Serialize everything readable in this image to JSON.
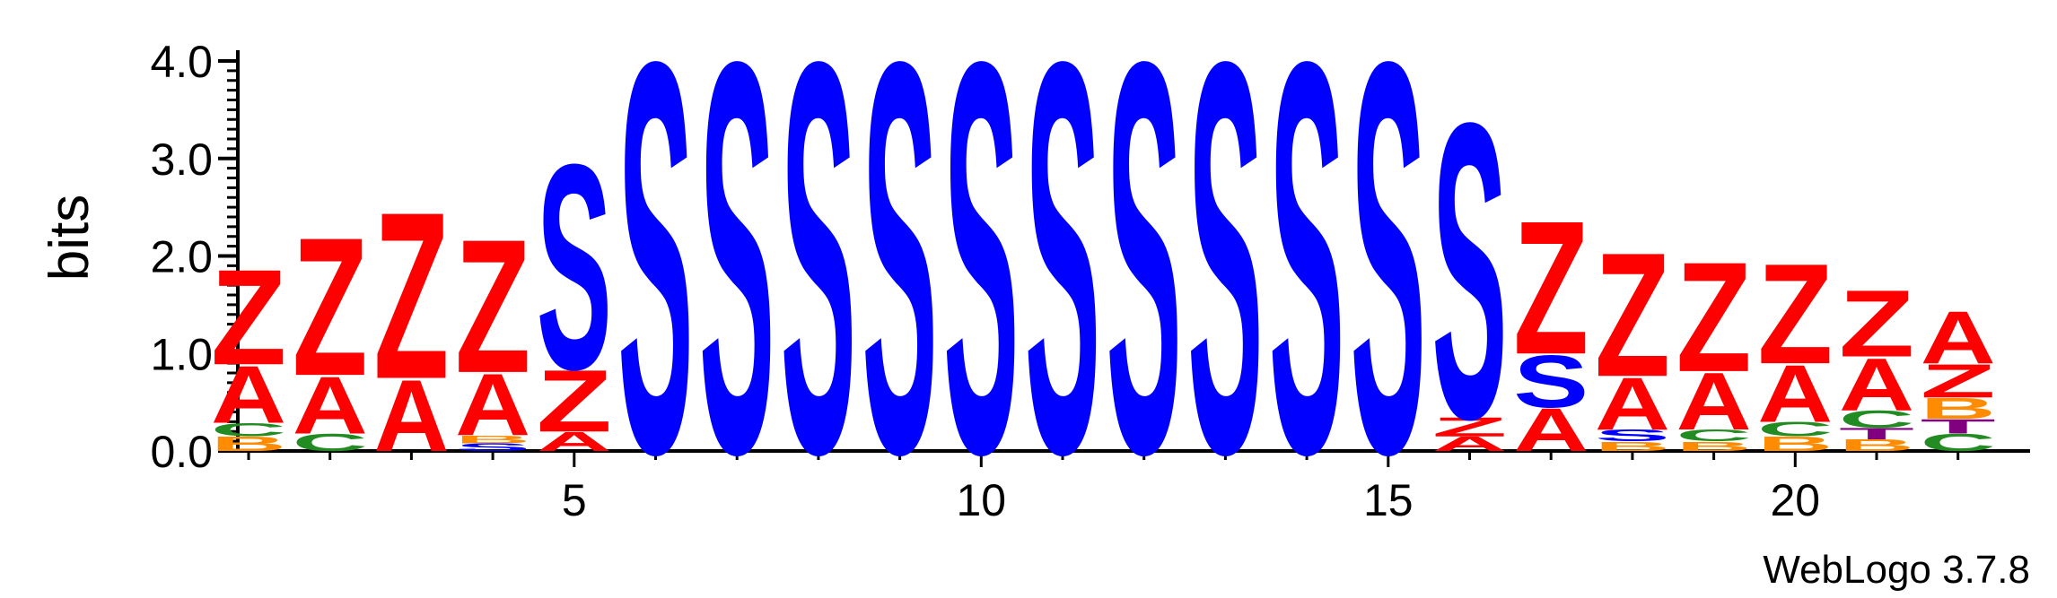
{
  "chart_data": {
    "type": "sequence_logo",
    "ylabel": "bits",
    "ylim": [
      0,
      4.0
    ],
    "y_ticks": [
      "0.0",
      "1.0",
      "2.0",
      "3.0",
      "4.0"
    ],
    "x_ticks": [
      "5",
      "10",
      "15",
      "20"
    ],
    "footer": "WebLogo 3.7.8",
    "colors": {
      "Z": "#ff0000",
      "A": "#ff0000",
      "S": "#0000ff",
      "C": "#228b22",
      "B": "#ff8c00",
      "T": "#800080",
      "O": "#ff0000"
    },
    "positions": [
      {
        "pos": 1,
        "stack": [
          {
            "l": "B",
            "h": 0.15
          },
          {
            "l": "C",
            "h": 0.14
          },
          {
            "l": "A",
            "h": 0.6
          },
          {
            "l": "Z",
            "h": 1.0
          }
        ]
      },
      {
        "pos": 2,
        "stack": [
          {
            "l": "C",
            "h": 0.18
          },
          {
            "l": "A",
            "h": 0.6
          },
          {
            "l": "Z",
            "h": 1.45
          }
        ]
      },
      {
        "pos": 3,
        "stack": [
          {
            "l": "A",
            "h": 0.75
          },
          {
            "l": "Z",
            "h": 1.75
          }
        ]
      },
      {
        "pos": 4,
        "stack": [
          {
            "l": "S",
            "h": 0.08
          },
          {
            "l": "B",
            "h": 0.08
          },
          {
            "l": "A",
            "h": 0.65
          },
          {
            "l": "Z",
            "h": 1.4
          }
        ]
      },
      {
        "pos": 5,
        "stack": [
          {
            "l": "A",
            "h": 0.2
          },
          {
            "l": "Z",
            "h": 0.65
          },
          {
            "l": "S",
            "h": 2.15
          }
        ]
      },
      {
        "pos": 6,
        "stack": [
          {
            "l": "S",
            "h": 4.1
          }
        ]
      },
      {
        "pos": 7,
        "stack": [
          {
            "l": "S",
            "h": 4.1
          }
        ]
      },
      {
        "pos": 8,
        "stack": [
          {
            "l": "S",
            "h": 4.1
          }
        ]
      },
      {
        "pos": 9,
        "stack": [
          {
            "l": "S",
            "h": 4.1
          }
        ]
      },
      {
        "pos": 10,
        "stack": [
          {
            "l": "S",
            "h": 4.1
          }
        ]
      },
      {
        "pos": 11,
        "stack": [
          {
            "l": "S",
            "h": 4.1
          }
        ]
      },
      {
        "pos": 12,
        "stack": [
          {
            "l": "S",
            "h": 4.1
          }
        ]
      },
      {
        "pos": 13,
        "stack": [
          {
            "l": "S",
            "h": 4.1
          }
        ]
      },
      {
        "pos": 14,
        "stack": [
          {
            "l": "S",
            "h": 4.1
          }
        ]
      },
      {
        "pos": 15,
        "stack": [
          {
            "l": "S",
            "h": 4.1
          }
        ]
      },
      {
        "pos": 16,
        "stack": [
          {
            "l": "A",
            "h": 0.15
          },
          {
            "l": "Z",
            "h": 0.2
          },
          {
            "l": "S",
            "h": 3.1
          }
        ]
      },
      {
        "pos": 17,
        "stack": [
          {
            "l": "A",
            "h": 0.45
          },
          {
            "l": "S",
            "h": 0.55
          },
          {
            "l": "Z",
            "h": 1.4
          }
        ]
      },
      {
        "pos": 18,
        "stack": [
          {
            "l": "B",
            "h": 0.1
          },
          {
            "l": "S",
            "h": 0.12
          },
          {
            "l": "A",
            "h": 0.55
          },
          {
            "l": "Z",
            "h": 1.3
          }
        ]
      },
      {
        "pos": 19,
        "stack": [
          {
            "l": "B",
            "h": 0.1
          },
          {
            "l": "C",
            "h": 0.12
          },
          {
            "l": "A",
            "h": 0.6
          },
          {
            "l": "Z",
            "h": 1.15
          }
        ]
      },
      {
        "pos": 20,
        "stack": [
          {
            "l": "B",
            "h": 0.15
          },
          {
            "l": "C",
            "h": 0.15
          },
          {
            "l": "A",
            "h": 0.6
          },
          {
            "l": "Z",
            "h": 1.05
          }
        ]
      },
      {
        "pos": 21,
        "stack": [
          {
            "l": "B",
            "h": 0.12
          },
          {
            "l": "T",
            "h": 0.12
          },
          {
            "l": "C",
            "h": 0.18
          },
          {
            "l": "A",
            "h": 0.55
          },
          {
            "l": "Z",
            "h": 0.7
          }
        ]
      },
      {
        "pos": 22,
        "stack": [
          {
            "l": "C",
            "h": 0.18
          },
          {
            "l": "T",
            "h": 0.15
          },
          {
            "l": "B",
            "h": 0.22
          },
          {
            "l": "Z",
            "h": 0.35
          },
          {
            "l": "A",
            "h": 0.55
          }
        ]
      }
    ]
  }
}
